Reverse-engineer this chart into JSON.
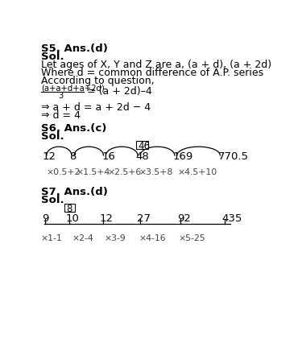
{
  "bg_color": "#ffffff",
  "s5_title": "S5. Ans.(d)",
  "s5_sol": "Sol.",
  "s5_line1": "Let ages of X, Y and Z are a, (a + d), (a + 2d)",
  "s5_line2": "Where d = common difference of A.P. series",
  "s5_line3": "According to question,",
  "s5_frac_num": "(a+a+d+a+2d)",
  "s5_frac_den": "3",
  "s5_frac_rhs": "= (a + 2d)–4",
  "s5_line4": "⇒ a + d = a + 2d − 4",
  "s5_line5": "⇒ d = 4",
  "s6_title": "S6. Ans.(c)",
  "s6_sol": "Sol.",
  "s6_numbers": [
    "12",
    "8",
    "16",
    "48",
    "169",
    "770.5"
  ],
  "s6_boxed": "46",
  "s6_boxed_idx": 3,
  "s6_ops": [
    "×0.5+2",
    "×1.5+4",
    "×2.5+6",
    "×3.5+8",
    "×4.5+10"
  ],
  "s7_title": "S7. Ans.(d)",
  "s7_sol": "Sol.",
  "s7_numbers": [
    "9",
    "10",
    "12",
    "27",
    "92",
    "435"
  ],
  "s7_boxed": "8",
  "s7_boxed_idx": 1,
  "s7_ops": [
    "×1-1",
    "×2-4",
    "×3-9",
    "×4-16",
    "×5-25"
  ]
}
